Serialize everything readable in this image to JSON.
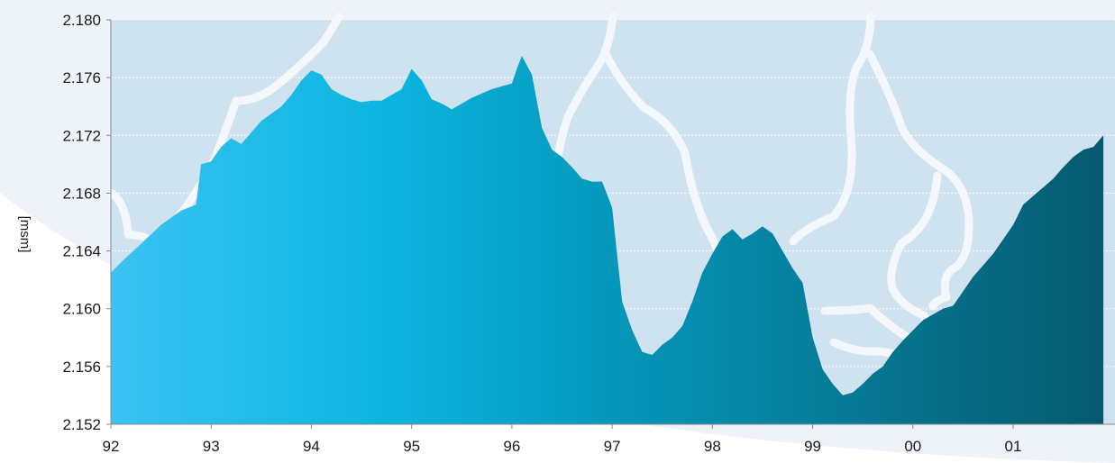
{
  "colors": {
    "plot_background": "#cfe2f0",
    "backdrop_swoosh": "#eef3fa",
    "river_lines": "#f4f8fc",
    "area_left": "#3bc3f2",
    "area_mid": "#0bb5e0",
    "area_right": "#06596d",
    "gridline": "#ffffff",
    "text": "#1a1a1a"
  },
  "chart_data": {
    "type": "area",
    "title": "",
    "xlabel": "",
    "ylabel": "[msm]",
    "xlim": [
      1992.0,
      2001.9
    ],
    "ylim": [
      2.152,
      2.18
    ],
    "grid": true,
    "x_ticks": [
      1992,
      1993,
      1994,
      1995,
      1996,
      1997,
      1998,
      1999,
      2000,
      2001
    ],
    "x_tick_labels": [
      "92",
      "93",
      "94",
      "95",
      "96",
      "97",
      "98",
      "99",
      "00",
      "01"
    ],
    "y_ticks": [
      2.152,
      2.156,
      2.16,
      2.164,
      2.168,
      2.172,
      2.176,
      2.18
    ],
    "y_tick_labels": [
      "2.152",
      "2.156",
      "2.160",
      "2.164",
      "2.168",
      "2.172",
      "2.176",
      "2.180"
    ],
    "series": [
      {
        "x": [
          1992.0,
          1992.1,
          1992.3,
          1992.5,
          1992.7,
          1992.85,
          1992.9,
          1993.0,
          1993.1,
          1993.2,
          1993.3,
          1993.4,
          1993.5,
          1993.6,
          1993.7,
          1993.8,
          1993.9,
          1994.0,
          1994.1,
          1994.2,
          1994.3,
          1994.4,
          1994.5,
          1994.6,
          1994.7,
          1994.8,
          1994.9,
          1995.0,
          1995.1,
          1995.2,
          1995.3,
          1995.4,
          1995.5,
          1995.6,
          1995.7,
          1995.8,
          1995.9,
          1996.0,
          1996.05,
          1996.1,
          1996.2,
          1996.3,
          1996.4,
          1996.5,
          1996.6,
          1996.7,
          1996.8,
          1996.9,
          1997.0,
          1997.1,
          1997.2,
          1997.3,
          1997.4,
          1997.5,
          1997.6,
          1997.7,
          1997.8,
          1997.9,
          1998.0,
          1998.1,
          1998.2,
          1998.3,
          1998.4,
          1998.5,
          1998.6,
          1998.7,
          1998.8,
          1998.9,
          1999.0,
          1999.1,
          1999.2,
          1999.3,
          1999.4,
          1999.5,
          1999.6,
          1999.7,
          1999.8,
          1999.9,
          2000.0,
          2000.1,
          2000.2,
          2000.3,
          2000.4,
          2000.5,
          2000.6,
          2000.7,
          2000.8,
          2000.9,
          2001.0,
          2001.1,
          2001.2,
          2001.3,
          2001.4,
          2001.5,
          2001.6,
          2001.7,
          2001.8,
          2001.9
        ],
        "values": [
          2.1625,
          2.1632,
          2.1645,
          2.1658,
          2.1668,
          2.1672,
          2.17,
          2.1702,
          2.1712,
          2.1718,
          2.1714,
          2.1722,
          2.173,
          2.1735,
          2.174,
          2.1748,
          2.1758,
          2.1765,
          2.1762,
          2.1752,
          2.1748,
          2.1745,
          2.1743,
          2.1744,
          2.1744,
          2.1748,
          2.1752,
          2.1766,
          2.1758,
          2.1745,
          2.1742,
          2.1738,
          2.1742,
          2.1746,
          2.1749,
          2.1752,
          2.1754,
          2.1756,
          2.1766,
          2.1775,
          2.1762,
          2.1725,
          2.171,
          2.1705,
          2.1698,
          2.169,
          2.1688,
          2.1688,
          2.167,
          2.1605,
          2.1585,
          2.157,
          2.1568,
          2.1575,
          2.158,
          2.1588,
          2.1605,
          2.1625,
          2.1638,
          2.165,
          2.1655,
          2.1648,
          2.1652,
          2.1657,
          2.1652,
          2.164,
          2.1628,
          2.1618,
          2.158,
          2.1558,
          2.1548,
          2.154,
          2.1542,
          2.1548,
          2.1555,
          2.156,
          2.157,
          2.1578,
          2.1585,
          2.1592,
          2.1596,
          2.16,
          2.1602,
          2.1612,
          2.1622,
          2.163,
          2.1638,
          2.1648,
          2.1658,
          2.1672,
          2.1678,
          2.1684,
          2.169,
          2.1698,
          2.1705,
          2.171,
          2.1712,
          2.172
        ]
      }
    ]
  }
}
